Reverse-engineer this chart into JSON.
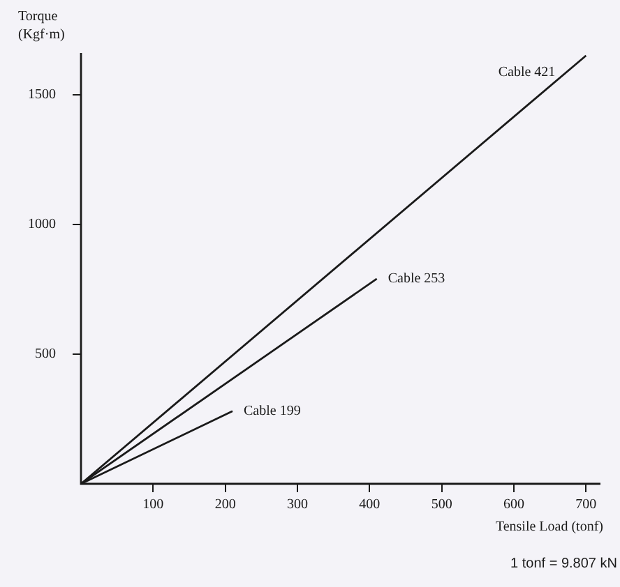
{
  "chart_data": {
    "type": "line",
    "xlabel": "Tensile Load (tonf)",
    "ylabel": "Torque (Kgf·m)",
    "xlim": [
      0,
      720
    ],
    "ylim": [
      0,
      1660
    ],
    "xticks": [
      100,
      200,
      300,
      400,
      500,
      600,
      700
    ],
    "yticks": [
      500,
      1000,
      1500
    ],
    "grid": false,
    "legend": false,
    "marker": "none",
    "line_style": "solid",
    "series": [
      {
        "name": "Cable 421",
        "color": "#1a1a1a",
        "x": [
          0,
          700
        ],
        "values": [
          0,
          1650
        ]
      },
      {
        "name": "Cable 253",
        "color": "#1a1a1a",
        "x": [
          0,
          410
        ],
        "values": [
          0,
          790
        ]
      },
      {
        "name": "Cable 199",
        "color": "#1a1a1a",
        "x": [
          0,
          210
        ],
        "values": [
          0,
          280
        ]
      }
    ],
    "annotations": [
      "1 tonf = 9.807 kN"
    ]
  }
}
